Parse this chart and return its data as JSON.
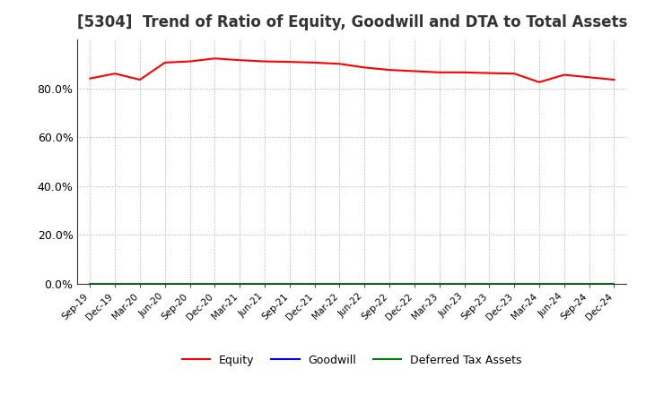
{
  "title": "[5304]  Trend of Ratio of Equity, Goodwill and DTA to Total Assets",
  "x_labels": [
    "Sep-19",
    "Dec-19",
    "Mar-20",
    "Jun-20",
    "Sep-20",
    "Dec-20",
    "Mar-21",
    "Jun-21",
    "Sep-21",
    "Dec-21",
    "Mar-22",
    "Jun-22",
    "Sep-22",
    "Dec-22",
    "Mar-23",
    "Jun-23",
    "Sep-23",
    "Dec-23",
    "Mar-24",
    "Jun-24",
    "Sep-24",
    "Dec-24"
  ],
  "equity": [
    84.0,
    86.0,
    83.5,
    90.5,
    91.0,
    92.2,
    91.5,
    91.0,
    90.8,
    90.5,
    90.0,
    88.5,
    87.5,
    87.0,
    86.5,
    86.5,
    86.2,
    86.0,
    82.5,
    85.5,
    84.5,
    83.5
  ],
  "goodwill": [
    0.0,
    0.0,
    0.0,
    0.0,
    0.0,
    0.0,
    0.0,
    0.0,
    0.0,
    0.0,
    0.0,
    0.0,
    0.0,
    0.0,
    0.0,
    0.0,
    0.0,
    0.0,
    0.0,
    0.0,
    0.0,
    0.0
  ],
  "dta": [
    0.0,
    0.0,
    0.0,
    0.0,
    0.0,
    0.0,
    0.0,
    0.0,
    0.0,
    0.0,
    0.0,
    0.0,
    0.0,
    0.0,
    0.0,
    0.0,
    0.0,
    0.0,
    0.0,
    0.0,
    0.0,
    0.0
  ],
  "equity_color": "#FF0000",
  "goodwill_color": "#0000FF",
  "dta_color": "#008000",
  "ylim": [
    0,
    100
  ],
  "yticks": [
    0,
    20,
    40,
    60,
    80
  ],
  "ytick_labels": [
    "0.0%",
    "20.0%",
    "40.0%",
    "60.0%",
    "80.0%"
  ],
  "background_color": "#FFFFFF",
  "grid_color": "#AAAAAA",
  "title_fontsize": 12,
  "legend_labels": [
    "Equity",
    "Goodwill",
    "Deferred Tax Assets"
  ]
}
